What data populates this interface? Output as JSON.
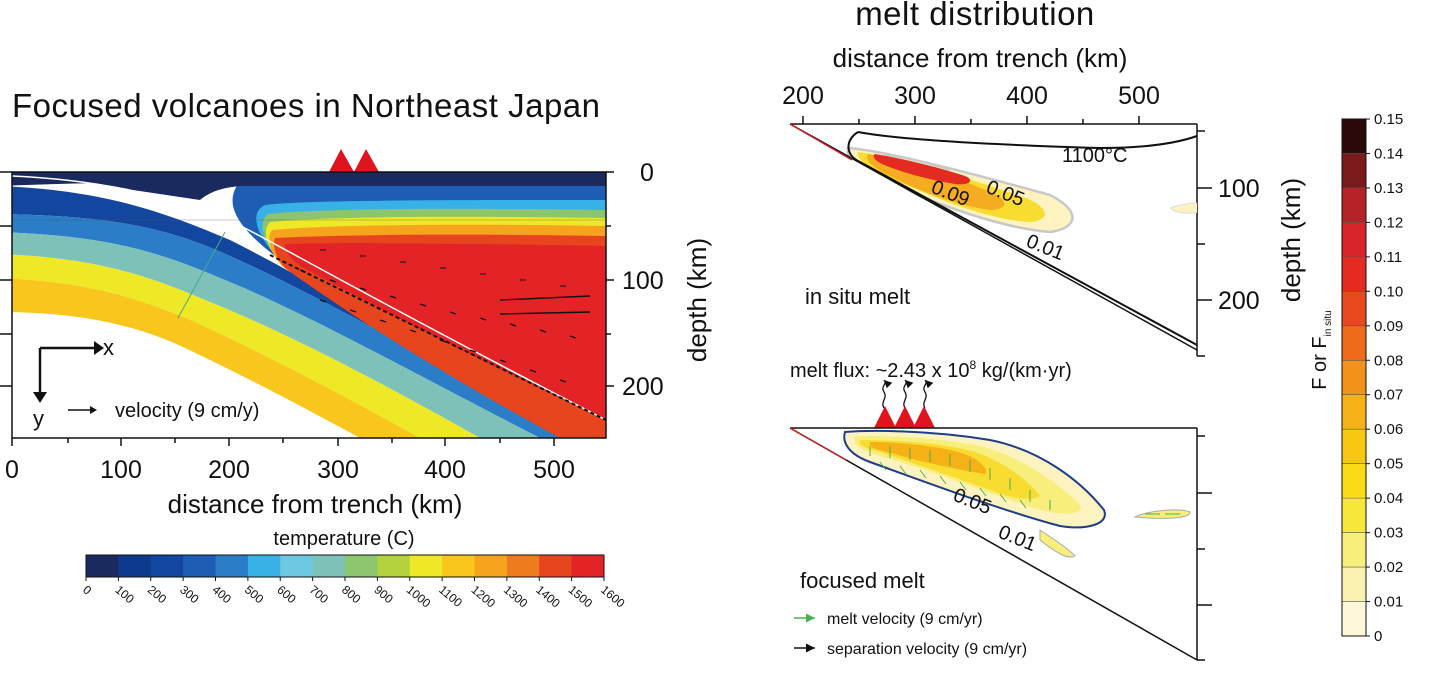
{
  "left_panel": {
    "title": "Focused volcanoes in Northeast Japan",
    "xlabel": "distance from trench (km)",
    "ylabel": "depth (km)",
    "x_ticks": [
      "0",
      "100",
      "200",
      "300",
      "400",
      "500"
    ],
    "y_ticks": [
      "0",
      "100",
      "200"
    ],
    "axis_x_label": "x",
    "axis_y_label": "y",
    "velocity_label": "velocity (9 cm/y)",
    "colorbar_title": "temperature (C)",
    "colorbar_ticks": [
      "0",
      "100",
      "200",
      "300",
      "400",
      "500",
      "600",
      "700",
      "800",
      "900",
      "1000",
      "1100",
      "1200",
      "1300",
      "1400",
      "1500",
      "1600"
    ],
    "colorbar_colors": [
      "#1b2a5e",
      "#0d3a8c",
      "#12469f",
      "#1d5db4",
      "#2a7dc6",
      "#37b1e6",
      "#6ec8e0",
      "#7ec1b8",
      "#8dc46e",
      "#b3d23d",
      "#eee826",
      "#f8c61c",
      "#f6a31e",
      "#ee7b1e",
      "#e7451e",
      "#e32326",
      "#b8282c"
    ]
  },
  "right_panel": {
    "title": "melt distribution",
    "xlabel": "distance from trench (km)",
    "ylabel": "depth (km)",
    "x_ticks": [
      "200",
      "300",
      "400",
      "500"
    ],
    "y_ticks": [
      "100",
      "200"
    ],
    "isotherm_label": "1100°C",
    "insitu_contours": [
      "0.09",
      "0.05",
      "0.01"
    ],
    "insitu_label": "in situ melt",
    "melt_flux_label": "melt flux: ~2.43 x 10",
    "melt_flux_exp": "8",
    "melt_flux_units": " kg/(km·yr)",
    "focused_contours": [
      "0.05",
      "0.01"
    ],
    "focused_label": "focused melt",
    "legend": [
      {
        "label": "melt velocity (9 cm/yr)",
        "color": "#4caf50"
      },
      {
        "label": "separation velocity (9 cm/yr)",
        "color": "#111111"
      }
    ]
  },
  "melt_colorbar": {
    "ylabel": "F or F",
    "ylabel_sub": "in situ",
    "ticks": [
      "0.15",
      "0.14",
      "0.13",
      "0.12",
      "0.11",
      "0.10",
      "0.09",
      "0.08",
      "0.07",
      "0.06",
      "0.05",
      "0.04",
      "0.03",
      "0.02",
      "0.01",
      "0"
    ],
    "colors": [
      "#2a0a08",
      "#7a1a1a",
      "#b52227",
      "#d8232a",
      "#e42b22",
      "#e8481d",
      "#ee6b1c",
      "#f3921a",
      "#f6b117",
      "#f7c813",
      "#f9dc13",
      "#f7e73a",
      "#f8ee7c",
      "#faf3b0",
      "#fcf8d8",
      "#ffffff"
    ]
  },
  "volcano_color": "#e0141e"
}
